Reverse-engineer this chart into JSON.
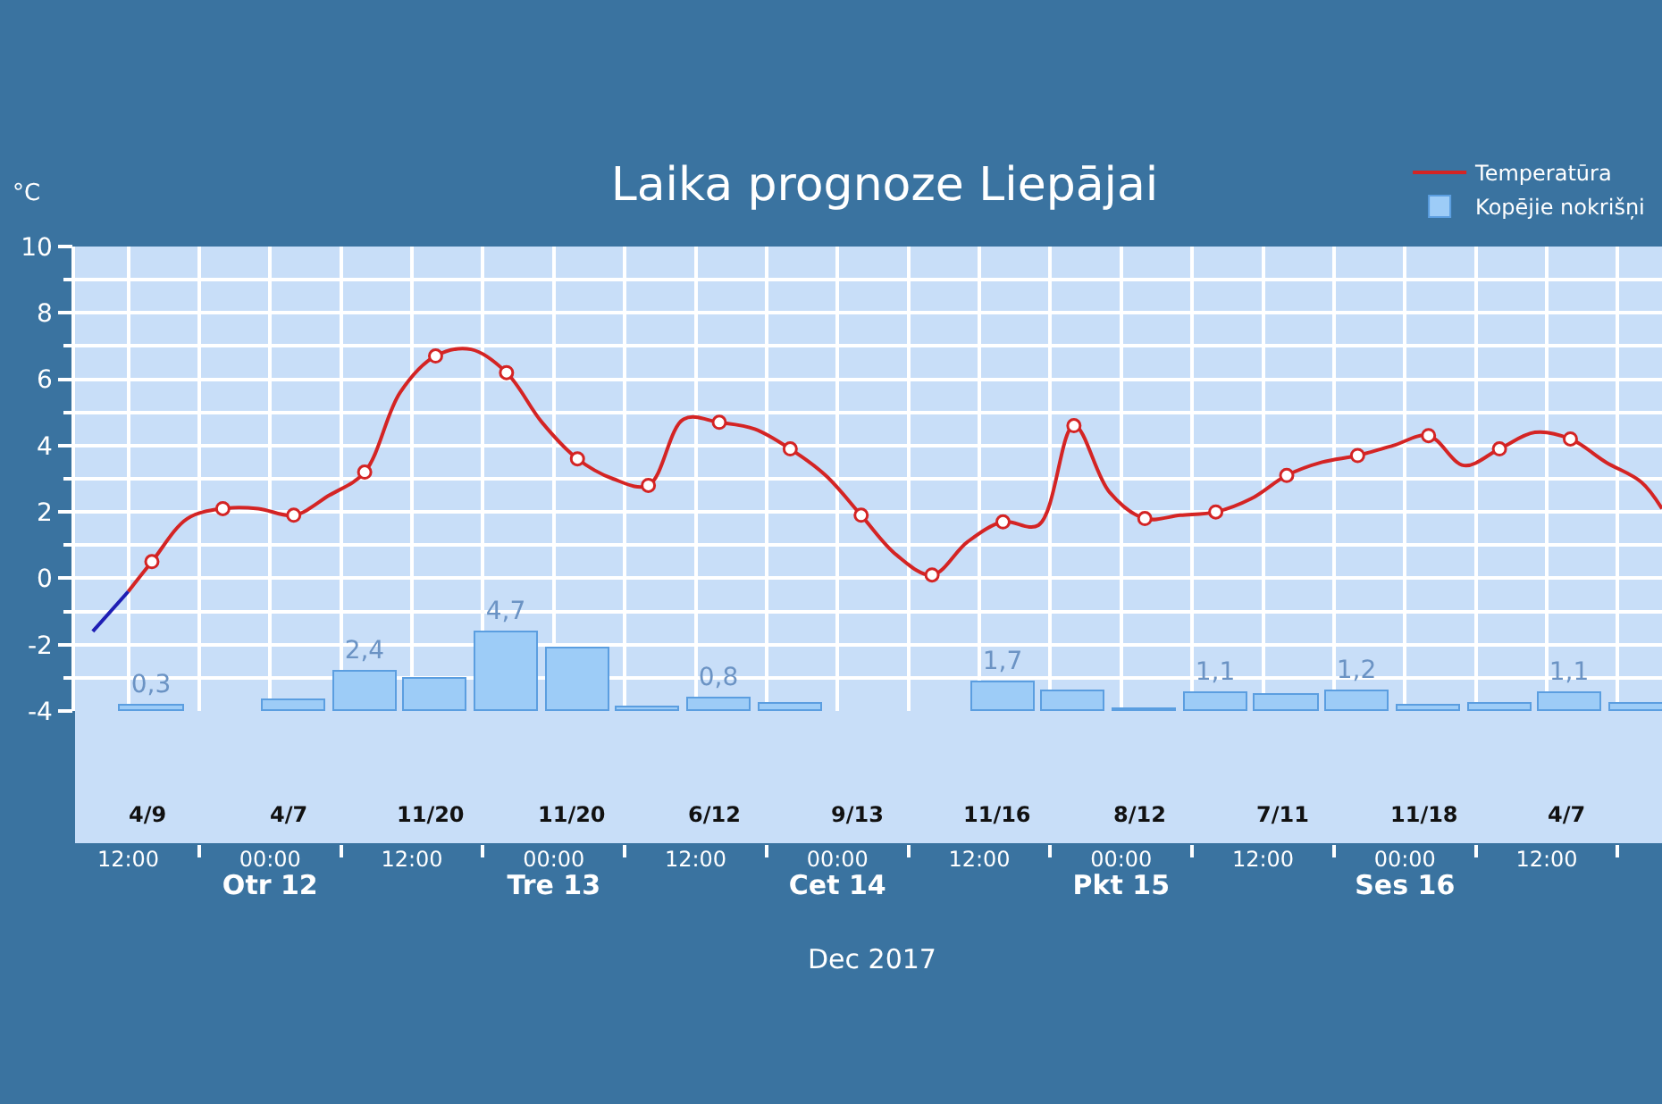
{
  "chart_data": {
    "type": "line",
    "title": "Laika prognoze Liepājai",
    "ylabel": "°C",
    "xlabel": "Dec 2017",
    "xlim": [
      "2017-12-11T07:30",
      "2017-12-16T21:45"
    ],
    "xticks": [
      {
        "value": "2017-12-11T12:00",
        "label": "12:00"
      },
      {
        "value": "2017-12-11T18:00",
        "label": null
      },
      {
        "value": "2017-12-12T00:00",
        "label": "00:00\nOtr 12"
      },
      {
        "value": "2017-12-12T06:00",
        "label": null
      },
      {
        "value": "2017-12-12T12:00",
        "label": "12:00"
      },
      {
        "value": "2017-12-12T18:00",
        "label": null
      },
      {
        "value": "2017-12-13T00:00",
        "label": "00:00\nTre 13"
      },
      {
        "value": "2017-12-13T06:00",
        "label": null
      },
      {
        "value": "2017-12-13T12:00",
        "label": "12:00"
      },
      {
        "value": "2017-12-13T18:00",
        "label": null
      },
      {
        "value": "2017-12-14T00:00",
        "label": "00:00\nCet 14"
      },
      {
        "value": "2017-12-14T06:00",
        "label": null
      },
      {
        "value": "2017-12-14T12:00",
        "label": "12:00"
      },
      {
        "value": "2017-12-14T18:00",
        "label": null
      },
      {
        "value": "2017-12-15T00:00",
        "label": "00:00\nPkt 15"
      },
      {
        "value": "2017-12-15T06:00",
        "label": null
      },
      {
        "value": "2017-12-15T12:00",
        "label": "12:00"
      },
      {
        "value": "2017-12-15T18:00",
        "label": null
      },
      {
        "value": "2017-12-16T00:00",
        "label": "00:00\nSes 16"
      },
      {
        "value": "2017-12-16T06:00",
        "label": null
      },
      {
        "value": "2017-12-16T12:00",
        "label": "12:00"
      },
      {
        "value": "2017-12-16T18:00",
        "label": null
      }
    ],
    "ylim": [
      -4,
      10
    ],
    "yticks": [
      -4,
      {
        "value": -3,
        "label": null
      },
      -2,
      {
        "value": -1,
        "label": null
      },
      0,
      {
        "value": 1,
        "label": null
      },
      2,
      {
        "value": 3,
        "label": null
      },
      4,
      {
        "value": 5,
        "label": null
      },
      6,
      {
        "value": 7,
        "label": null
      },
      8,
      {
        "value": 9,
        "label": null
      },
      10
    ],
    "y2lim": [
      0,
      28
    ],
    "grid": true,
    "legend": "top right",
    "series": [
      {
        "name": "Temperatūra",
        "color": "#d42424",
        "marker": "none",
        "x": [
          "2017-12-11T12:00",
          "2017-12-11T14:00",
          "2017-12-11T17:00",
          "2017-12-11T20:00",
          "2017-12-11T23:00",
          "2017-12-12T02:00",
          "2017-12-12T05:00",
          "2017-12-12T08:00",
          "2017-12-12T11:00",
          "2017-12-12T14:00",
          "2017-12-12T17:00",
          "2017-12-12T20:00",
          "2017-12-12T23:00",
          "2017-12-13T02:00",
          "2017-12-13T05:00",
          "2017-12-13T08:00",
          "2017-12-13T11:00",
          "2017-12-13T14:00",
          "2017-12-13T17:00",
          "2017-12-13T20:00",
          "2017-12-13T23:00",
          "2017-12-14T02:00",
          "2017-12-14T05:00",
          "2017-12-14T08:00",
          "2017-12-14T11:00",
          "2017-12-14T14:00",
          "2017-12-14T17:00",
          "2017-12-14T20:00",
          "2017-12-14T23:00",
          "2017-12-15T02:00",
          "2017-12-15T05:00",
          "2017-12-15T08:00",
          "2017-12-15T11:00",
          "2017-12-15T14:00",
          "2017-12-15T17:00",
          "2017-12-15T20:00",
          "2017-12-15T23:00",
          "2017-12-16T02:00",
          "2017-12-16T05:00",
          "2017-12-16T08:00",
          "2017-12-16T11:00",
          "2017-12-16T14:00",
          "2017-12-16T17:00",
          "2017-12-16T20:00",
          "2017-12-16T21:45"
        ],
        "values": [
          -0.4,
          0.5,
          1.8,
          2.1,
          2.1,
          1.9,
          2.5,
          3.2,
          5.6,
          6.7,
          6.9,
          6.2,
          4.7,
          3.6,
          3.0,
          2.8,
          4.8,
          4.7,
          4.5,
          3.9,
          3.1,
          1.9,
          0.7,
          0.1,
          1.1,
          1.7,
          1.6,
          4.6,
          2.6,
          1.8,
          1.9,
          2.0,
          2.4,
          3.1,
          3.5,
          3.7,
          4.0,
          4.3,
          3.4,
          3.9,
          4.4,
          4.2,
          3.5,
          2.9,
          2.1
        ]
      },
      {
        "color": "#1e1eb4",
        "marker": "none",
        "x": [
          "2017-12-11T09:00",
          "2017-12-11T12:00"
        ],
        "values": [
          -1.6,
          -0.4
        ]
      },
      {
        "type": "scatter",
        "color": "#d42424",
        "marker": "circle",
        "x": [
          "2017-12-11T14:00",
          "2017-12-11T20:00",
          "2017-12-12T02:00",
          "2017-12-12T08:00",
          "2017-12-12T14:00",
          "2017-12-12T20:00",
          "2017-12-13T02:00",
          "2017-12-13T08:00",
          "2017-12-13T14:00",
          "2017-12-13T20:00",
          "2017-12-14T02:00",
          "2017-12-14T08:00",
          "2017-12-14T14:00",
          "2017-12-14T20:00",
          "2017-12-15T02:00",
          "2017-12-15T08:00",
          "2017-12-15T14:00",
          "2017-12-15T20:00",
          "2017-12-16T02:00",
          "2017-12-16T08:00",
          "2017-12-16T14:00"
        ],
        "values": [
          0.5,
          2.1,
          1.9,
          3.2,
          6.7,
          6.2,
          3.6,
          2.8,
          4.7,
          3.9,
          1.9,
          0.1,
          1.7,
          4.6,
          1.8,
          2.0,
          3.1,
          3.7,
          4.3,
          3.9,
          4.2
        ]
      },
      {
        "name": "Kopējie nokrišņi",
        "type": "bar",
        "axis": "y2",
        "color": "#9dccf7",
        "x": [
          "2017-12-11T14:00",
          "2017-12-11T20:00",
          "2017-12-12T02:00",
          "2017-12-12T08:00",
          "2017-12-12T14:00",
          "2017-12-12T20:00",
          "2017-12-13T02:00",
          "2017-12-13T08:00",
          "2017-12-13T14:00",
          "2017-12-13T20:00",
          "2017-12-14T02:00",
          "2017-12-14T08:00",
          "2017-12-14T14:00",
          "2017-12-14T20:00",
          "2017-12-15T02:00",
          "2017-12-15T08:00",
          "2017-12-15T14:00",
          "2017-12-15T20:00",
          "2017-12-16T02:00",
          "2017-12-16T08:00",
          "2017-12-16T14:00",
          "2017-12-16T20:00"
        ],
        "values": [
          0.3,
          null,
          0.7,
          2.4,
          1.9,
          4.7,
          3.8,
          0.2,
          0.8,
          0.4,
          null,
          null,
          1.7,
          1.2,
          0.1,
          1.1,
          1.0,
          1.2,
          0.3,
          0.4,
          1.1,
          0.4
        ],
        "value_labels": [
          "0,3",
          null,
          null,
          "2,4",
          null,
          "4,7",
          null,
          null,
          "0,8",
          null,
          null,
          null,
          "1,7",
          null,
          null,
          "1,1",
          null,
          "1,2",
          null,
          null,
          "1,1",
          null
        ]
      }
    ],
    "annotations": [
      "4/9",
      "4/7",
      "11/20",
      "11/20",
      "6/12",
      "9/13",
      "11/16",
      "8/12",
      "7/11",
      "11/18",
      "4/7"
    ]
  }
}
